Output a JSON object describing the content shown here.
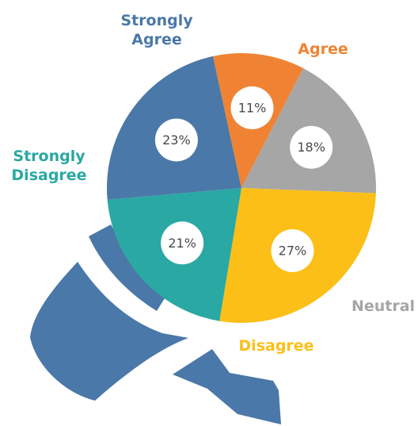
{
  "chart_data": {
    "type": "pie",
    "categories": [
      "Strongly Agree",
      "Agree",
      "Neutral",
      "Disagree",
      "Strongly Disagree"
    ],
    "values": [
      23,
      11,
      18,
      27,
      21
    ],
    "value_labels": [
      "23%",
      "11%",
      "18%",
      "27%",
      "21%"
    ],
    "colors": [
      "#4a78a8",
      "#ef8333",
      "#a6a6a6",
      "#fbbf17",
      "#2aa8a3"
    ]
  }
}
